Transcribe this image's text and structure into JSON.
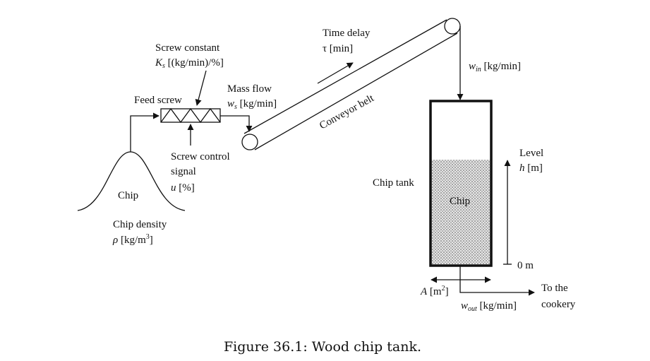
{
  "labels": {
    "screw_constant": "Screw constant",
    "screw_constant_symbol": "K",
    "screw_constant_sub": "s",
    "screw_constant_unit": " [(kg/min)/%]",
    "feed_screw": "Feed screw",
    "mass_flow": "Mass flow",
    "mass_flow_symbol": "w",
    "mass_flow_sub": "s",
    "mass_flow_unit": " [kg/min]",
    "time_delay": "Time delay",
    "time_delay_symbol": "τ [min]",
    "conveyor_belt": "Conveyor belt",
    "win_symbol": "w",
    "win_sub": "in",
    "win_unit": " [kg/min]",
    "screw_control": "Screw control",
    "signal": "signal",
    "u_symbol": "u",
    "u_unit": " [%]",
    "chip_pile": "Chip",
    "chip_density": "Chip density",
    "rho_symbol": "ρ",
    "rho_unit": " [kg/m",
    "rho_sup": "3",
    "rho_close": "]",
    "chip_tank": "Chip tank",
    "chip_in_tank": "Chip",
    "level": "Level",
    "h_symbol": "h",
    "h_unit": " [m]",
    "zero_m": "0 m",
    "area_symbol": "A",
    "area_unit": " [m",
    "area_sup": "2",
    "area_close": "]",
    "wout_symbol": "w",
    "wout_sub": "out",
    "wout_unit": " [kg/min]",
    "to_the": "To the",
    "cookery": "cookery"
  },
  "caption": "Figure 36.1: Wood chip tank.",
  "colors": {
    "stroke": "#111111",
    "chip_fill": "#cfcfcf"
  }
}
